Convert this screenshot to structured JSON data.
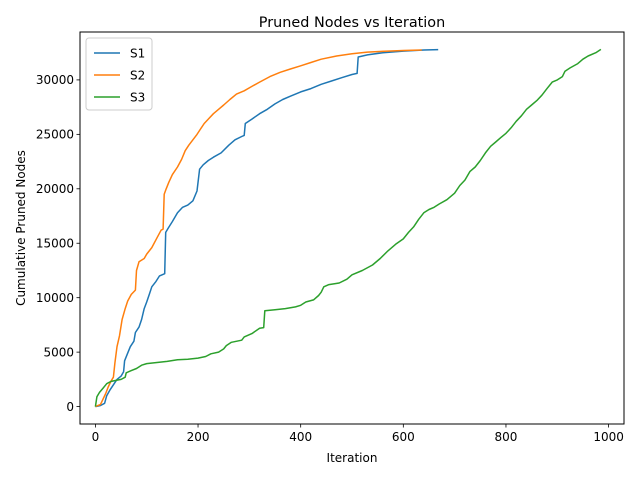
{
  "chart_data": {
    "type": "line",
    "title": "Pruned Nodes vs Iteration",
    "xlabel": "Iteration",
    "ylabel": "Cumulative Pruned Nodes",
    "xlim": [
      -30,
      1030
    ],
    "ylim": [
      -1600,
      34400
    ],
    "xticks": [
      0,
      200,
      400,
      600,
      800,
      1000
    ],
    "yticks": [
      0,
      5000,
      10000,
      15000,
      20000,
      25000,
      30000
    ],
    "grid": false,
    "legend": "top-left",
    "series": [
      {
        "name": "S1",
        "color": "#1f77b4",
        "points": [
          [
            0,
            0
          ],
          [
            10,
            100
          ],
          [
            18,
            300
          ],
          [
            22,
            1000
          ],
          [
            28,
            1500
          ],
          [
            35,
            2000
          ],
          [
            42,
            2500
          ],
          [
            50,
            2800
          ],
          [
            55,
            3200
          ],
          [
            57,
            4200
          ],
          [
            62,
            4800
          ],
          [
            68,
            5500
          ],
          [
            75,
            6000
          ],
          [
            78,
            6800
          ],
          [
            85,
            7300
          ],
          [
            90,
            8000
          ],
          [
            95,
            9000
          ],
          [
            100,
            9600
          ],
          [
            105,
            10300
          ],
          [
            110,
            11000
          ],
          [
            118,
            11500
          ],
          [
            125,
            12000
          ],
          [
            135,
            12200
          ],
          [
            137,
            16000
          ],
          [
            142,
            16400
          ],
          [
            150,
            17000
          ],
          [
            160,
            17800
          ],
          [
            170,
            18300
          ],
          [
            180,
            18500
          ],
          [
            190,
            18900
          ],
          [
            198,
            19800
          ],
          [
            203,
            21800
          ],
          [
            210,
            22200
          ],
          [
            220,
            22600
          ],
          [
            230,
            22900
          ],
          [
            245,
            23300
          ],
          [
            260,
            24000
          ],
          [
            272,
            24500
          ],
          [
            285,
            24800
          ],
          [
            290,
            24900
          ],
          [
            292,
            26000
          ],
          [
            305,
            26400
          ],
          [
            320,
            26900
          ],
          [
            335,
            27300
          ],
          [
            350,
            27800
          ],
          [
            365,
            28200
          ],
          [
            380,
            28500
          ],
          [
            400,
            28900
          ],
          [
            420,
            29200
          ],
          [
            440,
            29600
          ],
          [
            460,
            29900
          ],
          [
            480,
            30200
          ],
          [
            500,
            30500
          ],
          [
            510,
            30600
          ],
          [
            512,
            32100
          ],
          [
            530,
            32300
          ],
          [
            560,
            32500
          ],
          [
            600,
            32650
          ],
          [
            640,
            32750
          ],
          [
            668,
            32780
          ]
        ]
      },
      {
        "name": "S2",
        "color": "#ff7f0e",
        "points": [
          [
            0,
            0
          ],
          [
            10,
            200
          ],
          [
            15,
            700
          ],
          [
            20,
            1200
          ],
          [
            25,
            1800
          ],
          [
            30,
            2300
          ],
          [
            35,
            2700
          ],
          [
            38,
            4000
          ],
          [
            42,
            5500
          ],
          [
            47,
            6500
          ],
          [
            52,
            8000
          ],
          [
            58,
            9000
          ],
          [
            63,
            9700
          ],
          [
            70,
            10300
          ],
          [
            78,
            10700
          ],
          [
            80,
            12500
          ],
          [
            85,
            13300
          ],
          [
            95,
            13600
          ],
          [
            100,
            14000
          ],
          [
            110,
            14600
          ],
          [
            120,
            15500
          ],
          [
            128,
            16200
          ],
          [
            132,
            16300
          ],
          [
            134,
            19500
          ],
          [
            138,
            20000
          ],
          [
            143,
            20600
          ],
          [
            150,
            21300
          ],
          [
            160,
            22000
          ],
          [
            168,
            22700
          ],
          [
            175,
            23500
          ],
          [
            182,
            24000
          ],
          [
            190,
            24500
          ],
          [
            198,
            25000
          ],
          [
            205,
            25500
          ],
          [
            212,
            26000
          ],
          [
            220,
            26400
          ],
          [
            230,
            26900
          ],
          [
            240,
            27300
          ],
          [
            250,
            27700
          ],
          [
            262,
            28200
          ],
          [
            275,
            28700
          ],
          [
            290,
            29000
          ],
          [
            305,
            29400
          ],
          [
            320,
            29800
          ],
          [
            340,
            30300
          ],
          [
            360,
            30700
          ],
          [
            380,
            31000
          ],
          [
            400,
            31300
          ],
          [
            420,
            31600
          ],
          [
            440,
            31900
          ],
          [
            470,
            32200
          ],
          [
            500,
            32400
          ],
          [
            530,
            32550
          ],
          [
            570,
            32650
          ],
          [
            600,
            32700
          ],
          [
            636,
            32750
          ]
        ]
      },
      {
        "name": "S3",
        "color": "#2ca02c",
        "points": [
          [
            0,
            0
          ],
          [
            3,
            900
          ],
          [
            8,
            1300
          ],
          [
            15,
            1700
          ],
          [
            22,
            2100
          ],
          [
            30,
            2300
          ],
          [
            40,
            2400
          ],
          [
            50,
            2500
          ],
          [
            58,
            2700
          ],
          [
            60,
            3100
          ],
          [
            70,
            3300
          ],
          [
            80,
            3500
          ],
          [
            90,
            3800
          ],
          [
            100,
            3950
          ],
          [
            120,
            4050
          ],
          [
            140,
            4150
          ],
          [
            160,
            4300
          ],
          [
            180,
            4350
          ],
          [
            200,
            4450
          ],
          [
            215,
            4600
          ],
          [
            225,
            4850
          ],
          [
            240,
            5000
          ],
          [
            250,
            5300
          ],
          [
            255,
            5600
          ],
          [
            265,
            5900
          ],
          [
            285,
            6100
          ],
          [
            290,
            6400
          ],
          [
            305,
            6700
          ],
          [
            320,
            7200
          ],
          [
            328,
            7250
          ],
          [
            330,
            8800
          ],
          [
            350,
            8900
          ],
          [
            370,
            9000
          ],
          [
            390,
            9150
          ],
          [
            400,
            9300
          ],
          [
            410,
            9600
          ],
          [
            425,
            9800
          ],
          [
            435,
            10200
          ],
          [
            440,
            10500
          ],
          [
            445,
            11000
          ],
          [
            455,
            11200
          ],
          [
            475,
            11350
          ],
          [
            490,
            11700
          ],
          [
            500,
            12100
          ],
          [
            520,
            12500
          ],
          [
            540,
            13000
          ],
          [
            555,
            13600
          ],
          [
            570,
            14300
          ],
          [
            585,
            14900
          ],
          [
            600,
            15400
          ],
          [
            610,
            16000
          ],
          [
            620,
            16500
          ],
          [
            630,
            17200
          ],
          [
            640,
            17800
          ],
          [
            650,
            18100
          ],
          [
            660,
            18300
          ],
          [
            670,
            18600
          ],
          [
            685,
            19000
          ],
          [
            700,
            19600
          ],
          [
            710,
            20300
          ],
          [
            720,
            20800
          ],
          [
            730,
            21600
          ],
          [
            740,
            22000
          ],
          [
            750,
            22600
          ],
          [
            760,
            23300
          ],
          [
            770,
            23900
          ],
          [
            780,
            24300
          ],
          [
            790,
            24700
          ],
          [
            800,
            25100
          ],
          [
            810,
            25600
          ],
          [
            820,
            26200
          ],
          [
            830,
            26700
          ],
          [
            840,
            27300
          ],
          [
            850,
            27700
          ],
          [
            860,
            28100
          ],
          [
            870,
            28600
          ],
          [
            880,
            29200
          ],
          [
            890,
            29800
          ],
          [
            900,
            30000
          ],
          [
            910,
            30300
          ],
          [
            915,
            30800
          ],
          [
            925,
            31100
          ],
          [
            940,
            31500
          ],
          [
            950,
            31900
          ],
          [
            960,
            32200
          ],
          [
            975,
            32500
          ],
          [
            985,
            32800
          ]
        ]
      }
    ]
  }
}
